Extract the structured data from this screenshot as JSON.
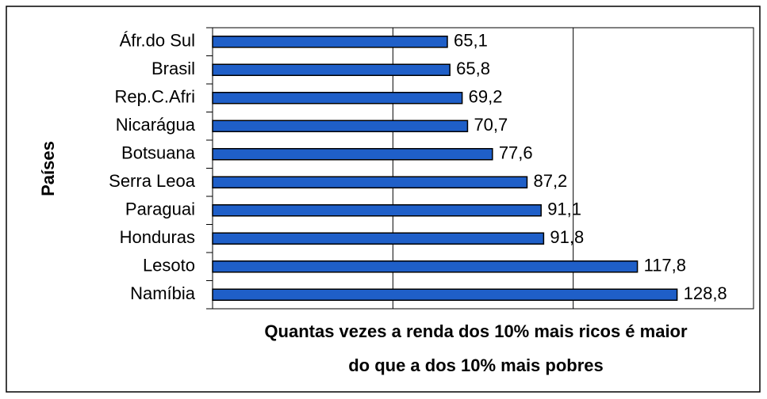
{
  "chart_data": {
    "type": "barh",
    "ylabel": "Países",
    "xlabel": [
      "Quantas vezes a renda dos 10% mais ricos é maior",
      "do que a dos 10% mais pobres"
    ],
    "categories": [
      "Áfr.do Sul",
      "Brasil",
      "Rep.C.Afri",
      "Nicarágua",
      "Botsuana",
      "Serra Leoa",
      "Paraguai",
      "Honduras",
      "Lesoto",
      "Namíbia"
    ],
    "values": [
      65.1,
      65.8,
      69.2,
      70.7,
      77.6,
      87.2,
      91.1,
      91.8,
      117.8,
      128.8
    ],
    "value_labels": [
      "65,1",
      "65,8",
      "69,2",
      "70,7",
      "77,6",
      "87,2",
      "91,1",
      "91,8",
      "117,8",
      "128,8"
    ],
    "color": "#1f5fc8",
    "xlim": [
      0,
      150
    ],
    "xticks": [
      0,
      50,
      100,
      150
    ],
    "grid": true
  }
}
